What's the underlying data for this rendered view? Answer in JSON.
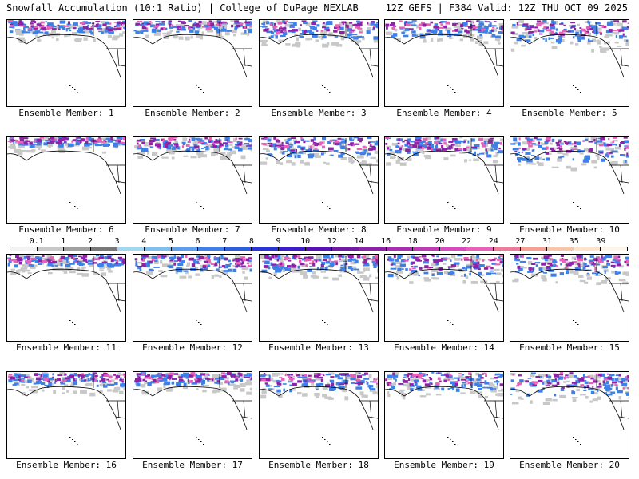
{
  "header": {
    "left": "Snowfall Accumulation (10:1 Ratio) | College of DuPage NEXLAB",
    "right": "12Z GEFS | F384 Valid: 12Z THU OCT 09 2025"
  },
  "panels": [
    {
      "label": "Ensemble Member: 1"
    },
    {
      "label": "Ensemble Member: 2"
    },
    {
      "label": "Ensemble Member: 3"
    },
    {
      "label": "Ensemble Member: 4"
    },
    {
      "label": "Ensemble Member: 5"
    },
    {
      "label": "Ensemble Member: 6"
    },
    {
      "label": "Ensemble Member: 7"
    },
    {
      "label": "Ensemble Member: 8"
    },
    {
      "label": "Ensemble Member: 9"
    },
    {
      "label": "Ensemble Member: 10"
    },
    {
      "label": "Ensemble Member: 11"
    },
    {
      "label": "Ensemble Member: 12"
    },
    {
      "label": "Ensemble Member: 13"
    },
    {
      "label": "Ensemble Member: 14"
    },
    {
      "label": "Ensemble Member: 15"
    },
    {
      "label": "Ensemble Member: 16"
    },
    {
      "label": "Ensemble Member: 17"
    },
    {
      "label": "Ensemble Member: 18"
    },
    {
      "label": "Ensemble Member: 19"
    },
    {
      "label": "Ensemble Member: 20"
    }
  ],
  "colorbar": {
    "labels": [
      "0.1",
      "1",
      "2",
      "3",
      "4",
      "5",
      "6",
      "7",
      "8",
      "9",
      "10",
      "12",
      "14",
      "16",
      "18",
      "20",
      "22",
      "24",
      "27",
      "31",
      "35",
      "39"
    ],
    "colors": [
      "#f2f2f2",
      "#c8c8c8",
      "#a0a0a0",
      "#787878",
      "#9fd8f0",
      "#7cc0f0",
      "#5aa0ee",
      "#3d80e8",
      "#2a5fe0",
      "#2a35d8",
      "#3d1ccc",
      "#5a10b8",
      "#7418a8",
      "#8e22a6",
      "#a830b0",
      "#c03ab8",
      "#d84abf",
      "#e860b8",
      "#f07a9a",
      "#f5a090",
      "#f9c4a8",
      "#fde2cc",
      "#fff4e8"
    ]
  },
  "style": {
    "snow_heavy": "#8e22a6",
    "snow_mid": "#3d80e8",
    "snow_light": "#c8c8c8",
    "snow_pink": "#e860b8"
  }
}
